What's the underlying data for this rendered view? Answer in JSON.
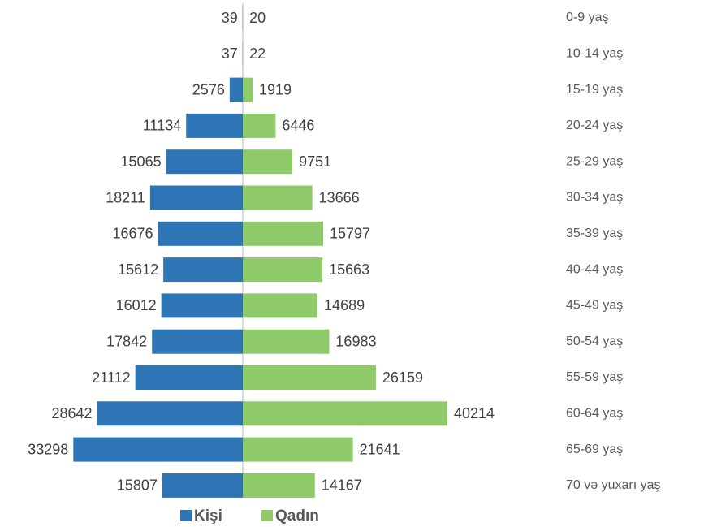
{
  "chart_data": {
    "type": "pyramid",
    "categories": [
      "0-9 yaş",
      "10-14 yaş",
      "15-19 yaş",
      "20-24 yaş",
      "25-29 yaş",
      "30-34 yaş",
      "35-39 yaş",
      "40-44 yaş",
      "45-49 yaş",
      "50-54 yaş",
      "55-59 yaş",
      "60-64 yaş",
      "65-69 yaş",
      "70 və yuxarı yaş"
    ],
    "series": [
      {
        "name": "Kişi",
        "color": "#2e75b6",
        "values": [
          39,
          37,
          2576,
          11134,
          15065,
          18211,
          16676,
          15612,
          16012,
          17842,
          21112,
          28642,
          33298,
          15807
        ]
      },
      {
        "name": "Qadın",
        "color": "#8ec96a",
        "values": [
          20,
          22,
          1919,
          6446,
          9751,
          13666,
          15797,
          15663,
          14689,
          16983,
          26159,
          40214,
          21641,
          14167
        ]
      }
    ],
    "legend": "bottom"
  }
}
